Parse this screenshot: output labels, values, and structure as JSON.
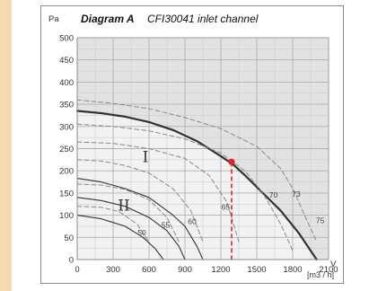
{
  "colors": {
    "grid_bg": "#e2e2e2",
    "upper_region": "#dcdcdc",
    "lower_region": "#f2f2f2",
    "curve": "#333333",
    "dashed": "#8a8a8a",
    "operating_point": "#e8231f",
    "frame": "#8a8a8a"
  },
  "chart_data": {
    "type": "line",
    "title_bold": "Diagram A",
    "title": "CFI30041 inlet channel",
    "ylabel": "Pa",
    "xlabel": "V",
    "x_unit": "[m3 / h]",
    "xlim": [
      0,
      2100
    ],
    "ylim": [
      0,
      500
    ],
    "x_ticks": [
      0,
      300,
      600,
      900,
      1200,
      1500,
      1800,
      2100
    ],
    "y_ticks": [
      0,
      50,
      100,
      150,
      200,
      250,
      300,
      350,
      400,
      450,
      500
    ],
    "grid": true,
    "region_labels": [
      {
        "text": "I",
        "x": 570,
        "y": 220
      },
      {
        "text": "II",
        "x": 390,
        "y": 110
      }
    ],
    "series": [
      {
        "style": "solid-thick",
        "x": [
          0,
          200,
          400,
          600,
          800,
          1000,
          1200,
          1300,
          1400,
          1550,
          1700,
          1850,
          1950,
          2000
        ],
        "y": [
          335,
          330,
          322,
          310,
          292,
          267,
          233,
          215,
          190,
          150,
          110,
          60,
          20,
          0
        ]
      },
      {
        "style": "solid-thin",
        "x": [
          0,
          200,
          400,
          600,
          800,
          900,
          1000,
          1050
        ],
        "y": [
          183,
          175,
          160,
          140,
          100,
          75,
          30,
          0
        ]
      },
      {
        "style": "solid-thin",
        "x": [
          0,
          200,
          400,
          600,
          750,
          850,
          900
        ],
        "y": [
          140,
          133,
          120,
          95,
          65,
          30,
          0
        ]
      },
      {
        "style": "solid-thin",
        "x": [
          0,
          200,
          400,
          550,
          650,
          720
        ],
        "y": [
          100,
          92,
          75,
          50,
          25,
          0
        ]
      },
      {
        "style": "dashed",
        "x": [
          0,
          300,
          600,
          900,
          1200,
          1500,
          1700,
          1800,
          1900,
          2000
        ],
        "y": [
          360,
          352,
          340,
          320,
          295,
          255,
          205,
          160,
          100,
          40
        ]
      },
      {
        "style": "dashed",
        "x": [
          0,
          300,
          600,
          900,
          1200,
          1400,
          1550,
          1700,
          1800
        ],
        "y": [
          305,
          300,
          290,
          272,
          240,
          200,
          150,
          80,
          20
        ]
      },
      {
        "style": "dashed",
        "x": [
          0,
          300,
          600,
          900,
          1100,
          1250,
          1350
        ],
        "y": [
          265,
          262,
          250,
          228,
          190,
          130,
          40
        ]
      },
      {
        "style": "dashed",
        "x": [
          0,
          200,
          400,
          600,
          800,
          950,
          1050
        ],
        "y": [
          225,
          222,
          212,
          195,
          160,
          110,
          40
        ]
      },
      {
        "style": "dashed",
        "x": [
          0,
          200,
          400,
          600,
          750,
          850
        ],
        "y": [
          170,
          168,
          158,
          135,
          95,
          40
        ]
      },
      {
        "style": "dashed",
        "x": [
          0,
          200,
          350,
          500,
          600
        ],
        "y": [
          120,
          118,
          108,
          80,
          40
        ]
      }
    ],
    "efficiency_labels": [
      {
        "text": "50",
        "x": 540,
        "y": 55
      },
      {
        "text": "55",
        "x": 740,
        "y": 72
      },
      {
        "text": "60",
        "x": 960,
        "y": 80
      },
      {
        "text": "65",
        "x": 1240,
        "y": 112
      },
      {
        "text": "70",
        "x": 1640,
        "y": 140
      },
      {
        "text": "73",
        "x": 1830,
        "y": 142
      },
      {
        "text": "75",
        "x": 2030,
        "y": 82
      }
    ],
    "operating_point": {
      "x": 1290,
      "y": 220
    }
  }
}
